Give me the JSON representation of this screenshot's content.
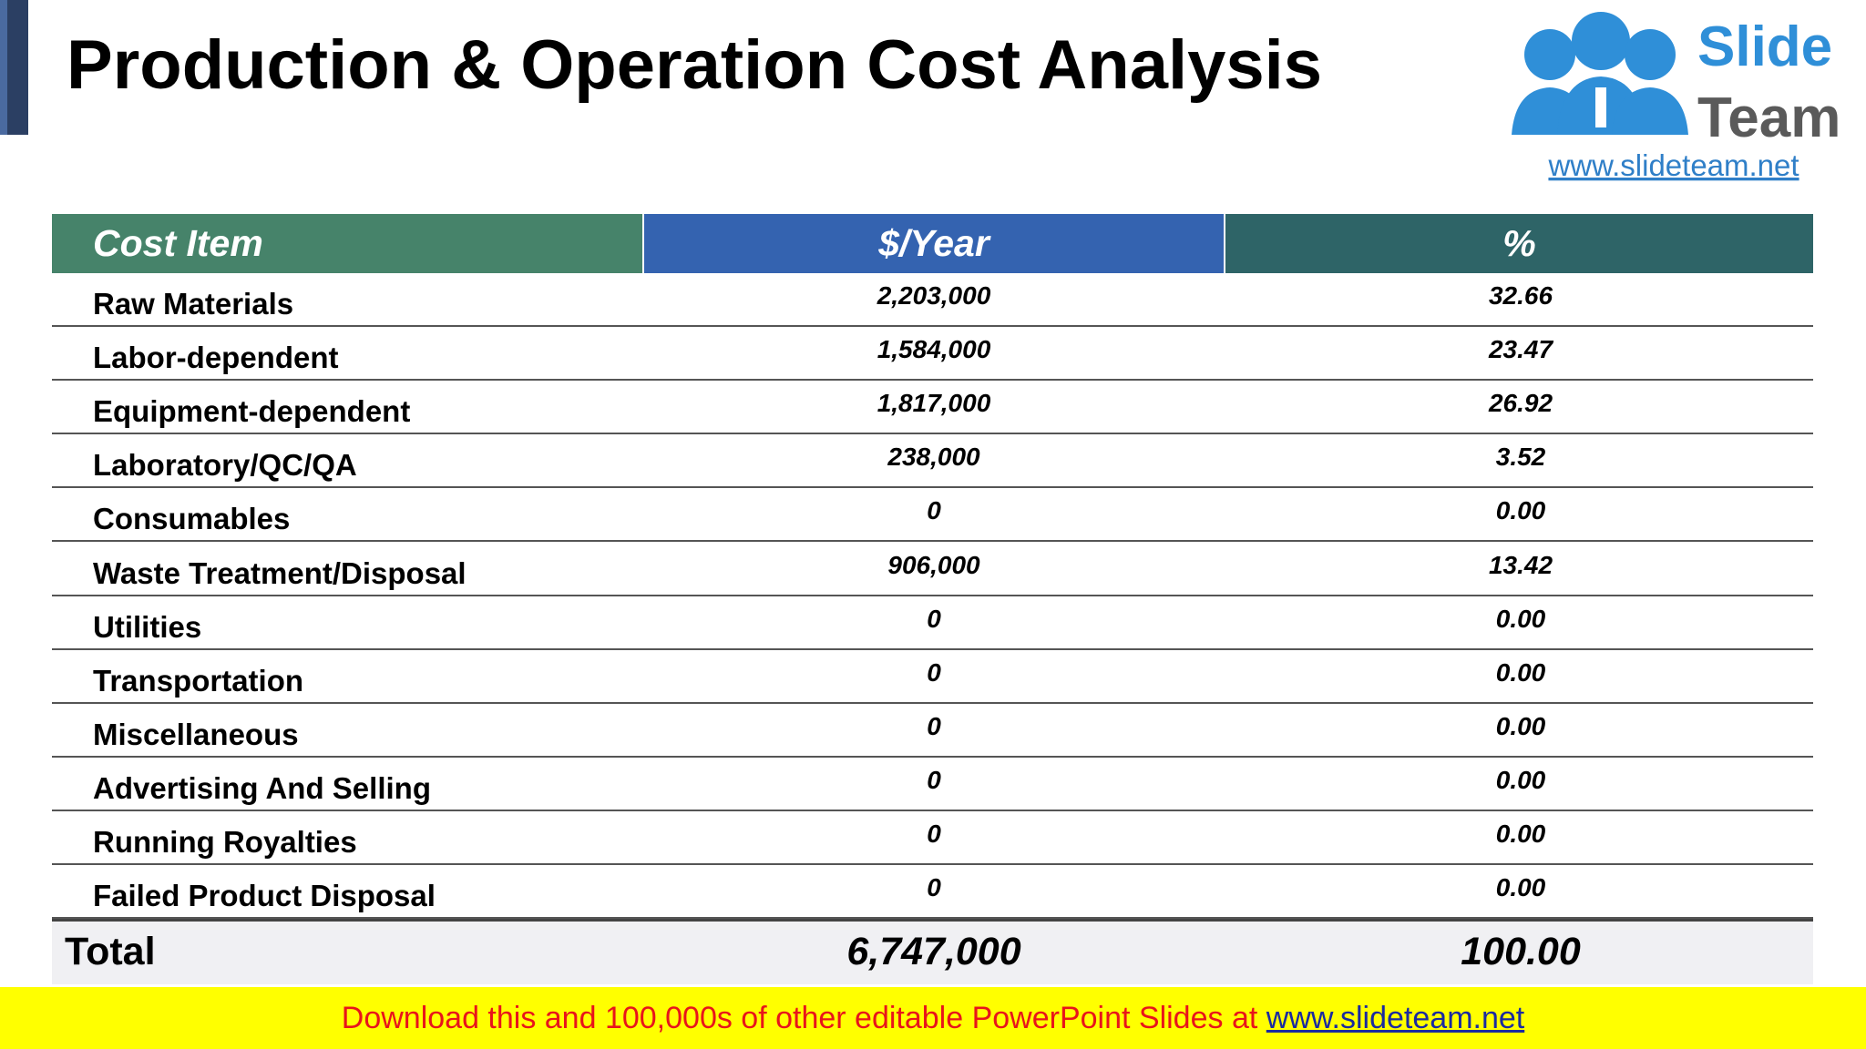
{
  "header": {
    "title": "Production & Operation Cost Analysis",
    "logo": {
      "word1": "Slide",
      "word2": "Team",
      "url": "www.slideteam.net"
    }
  },
  "table": {
    "columns": [
      "Cost Item",
      "$/Year",
      "%"
    ],
    "rows": [
      [
        "Raw Materials",
        "2,203,000",
        "32.66"
      ],
      [
        "Labor-dependent",
        "1,584,000",
        "23.47"
      ],
      [
        "Equipment-dependent",
        "1,817,000",
        "26.92"
      ],
      [
        "Laboratory/QC/QA",
        "238,000",
        "3.52"
      ],
      [
        "Consumables",
        "0",
        "0.00"
      ],
      [
        "Waste Treatment/Disposal",
        "906,000",
        "13.42"
      ],
      [
        "Utilities",
        "0",
        "0.00"
      ],
      [
        "Transportation",
        "0",
        "0.00"
      ],
      [
        "Miscellaneous",
        "0",
        "0.00"
      ],
      [
        "Advertising And Selling",
        "0",
        "0.00"
      ],
      [
        "Running Royalties",
        "0",
        "0.00"
      ],
      [
        "Failed Product Disposal",
        "0",
        "0.00"
      ]
    ],
    "total": [
      "Total",
      "6,747,000",
      "100.00"
    ]
  },
  "footer": {
    "text": "Download this and 100,000s of other editable PowerPoint Slides at",
    "link": "www.slideteam.net"
  }
}
